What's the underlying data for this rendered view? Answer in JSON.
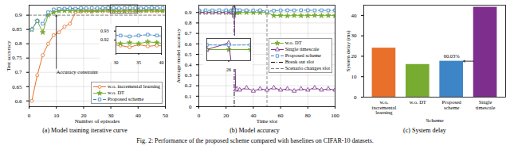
{
  "chart_data": [
    {
      "type": "line",
      "title": "(a) Model training iterative curve",
      "xlabel": "Number of episodes",
      "ylabel": "Test accuracy",
      "x": [
        1,
        3,
        5,
        7,
        9,
        11,
        13,
        15,
        17,
        19,
        21,
        23,
        25,
        27,
        29,
        31,
        33,
        35,
        37,
        39,
        41,
        43,
        45,
        47,
        49
      ],
      "xlim": [
        0,
        50
      ],
      "xticks": [
        0,
        10,
        20,
        30,
        40,
        50
      ],
      "ylim": [
        0.58,
        0.935
      ],
      "yticks": [
        0.6,
        0.65,
        0.7,
        0.75,
        0.8,
        0.85,
        0.9
      ],
      "grid": true,
      "legend": "lower right",
      "series": [
        {
          "name": "w.o. incremental learning",
          "color": "#E8702A",
          "marker": "circle",
          "line_style": "solid",
          "values": [
            0.6,
            0.69,
            0.76,
            0.8,
            0.83,
            0.84,
            0.86,
            0.87,
            0.91,
            0.912,
            0.913,
            0.912,
            0.914,
            0.913,
            0.915,
            0.914,
            0.912,
            0.915,
            0.913,
            0.914,
            0.913,
            0.915,
            0.914,
            0.913,
            0.914
          ]
        },
        {
          "name": "w.o. DT",
          "color": "#77AC30",
          "marker": "star",
          "line_style": "solid",
          "values": [
            0.85,
            0.88,
            0.84,
            0.9,
            0.91,
            0.915,
            0.916,
            0.915,
            0.917,
            0.916,
            0.917,
            0.915,
            0.916,
            0.917,
            0.918,
            0.916,
            0.917,
            0.916,
            0.918,
            0.917,
            0.916,
            0.917,
            0.918,
            0.917,
            0.916
          ]
        },
        {
          "name": "Proposed scheme",
          "color": "#3D85C6",
          "marker": "square",
          "line_style": "dashed",
          "values": [
            0.85,
            0.88,
            0.87,
            0.91,
            0.92,
            0.922,
            0.923,
            0.924,
            0.923,
            0.925,
            0.924,
            0.925,
            0.924,
            0.925,
            0.926,
            0.925,
            0.924,
            0.925,
            0.926,
            0.925,
            0.924,
            0.925,
            0.926,
            0.925,
            0.925
          ]
        }
      ],
      "reference_lines": [
        {
          "y": 0.9,
          "color": "#7f7f7f",
          "line_style": "dashed"
        }
      ],
      "annotations": [
        {
          "text": "Accuracy constraint",
          "x": 10,
          "y": 0.7,
          "target_y": 0.9
        }
      ],
      "inset": {
        "xlim": [
          30,
          40
        ],
        "ylim": [
          0.905,
          0.935
        ],
        "xticks": [
          30,
          35,
          40
        ],
        "yticks": [
          0.92,
          0.93
        ]
      }
    },
    {
      "type": "line",
      "title": "(b) Model accuracy",
      "xlabel": "Time slot",
      "ylabel": "Average model accuracy",
      "x": [
        0,
        5,
        10,
        15,
        20,
        24,
        25,
        26,
        27,
        28,
        30,
        35,
        40,
        45,
        50,
        55,
        60,
        65,
        70,
        75,
        80,
        85,
        90,
        95,
        100
      ],
      "xlim": [
        0,
        100
      ],
      "xticks": [
        0,
        20,
        40,
        60,
        80,
        100
      ],
      "ylim": [
        0,
        0.97
      ],
      "yticks": [
        0,
        0.1,
        0.2,
        0.3,
        0.4,
        0.5,
        0.6,
        0.7,
        0.8,
        0.9
      ],
      "grid": true,
      "legend": "center right",
      "series": [
        {
          "name": "w.o. DT",
          "color": "#77AC30",
          "marker": "star",
          "line_style": "solid",
          "values": [
            0.9,
            0.9,
            0.9,
            0.9,
            0.9,
            0.9,
            0.9,
            0.9,
            0.9,
            0.9,
            0.9,
            0.9,
            0.9,
            0.9,
            0.9,
            0.87,
            0.872,
            0.868,
            0.871,
            0.869,
            0.87,
            0.872,
            0.869,
            0.871,
            0.87
          ]
        },
        {
          "name": "Single timescale",
          "color": "#7E2F8E",
          "marker": "triangle",
          "line_style": "solid",
          "values": [
            0.9,
            0.9,
            0.9,
            0.9,
            0.9,
            0.9,
            0.9,
            0.93,
            0.16,
            0.17,
            0.16,
            0.18,
            0.15,
            0.17,
            0.16,
            0.18,
            0.16,
            0.17,
            0.15,
            0.17,
            0.16,
            0.18,
            0.16,
            0.17,
            0.16
          ]
        },
        {
          "name": "Proposed scheme",
          "color": "#3D85C6",
          "marker": "square",
          "line_style": "dashed",
          "values": [
            0.92,
            0.921,
            0.92,
            0.922,
            0.921,
            0.92,
            0.921,
            0.92,
            0.921,
            0.92,
            0.922,
            0.921,
            0.92,
            0.921,
            0.91,
            0.918,
            0.92,
            0.921,
            0.92,
            0.922,
            0.921,
            0.92,
            0.921,
            0.92,
            0.921
          ]
        }
      ],
      "reference_lines": [
        {
          "name": "Break out slot",
          "x": 26,
          "color": "#000000",
          "line_style": "dashdot"
        },
        {
          "name": "Scenario changes slot",
          "x": 50,
          "color": "#7f7f7f",
          "line_style": "dashed"
        }
      ],
      "inset": {
        "xlim": [
          25,
          27
        ],
        "ylim": [
          0.85,
          0.95
        ],
        "xticks": [
          26
        ],
        "tick_labels": "x"
      }
    },
    {
      "type": "bar",
      "title": "(c) System delay",
      "xlabel": "Scheme",
      "ylabel": "System delay (ms)",
      "categories": [
        "w.o. incremental learning",
        "w.o. DT",
        "Proposed scheme",
        "Single timescale"
      ],
      "values": [
        24,
        16,
        17.6,
        44
      ],
      "colors": [
        "#E8702A",
        "#77AC30",
        "#3D85C6",
        "#7E2F8E"
      ],
      "ylim": [
        0,
        45
      ],
      "yticks": [
        0,
        10,
        20,
        30,
        40
      ],
      "annotations": [
        {
          "text": "60.03%",
          "from": "Single timescale",
          "to": "Proposed scheme"
        }
      ]
    }
  ],
  "caption": "Fig. 2: Performance of the proposed scheme compared with baselines on CIFAR-10 datasets."
}
